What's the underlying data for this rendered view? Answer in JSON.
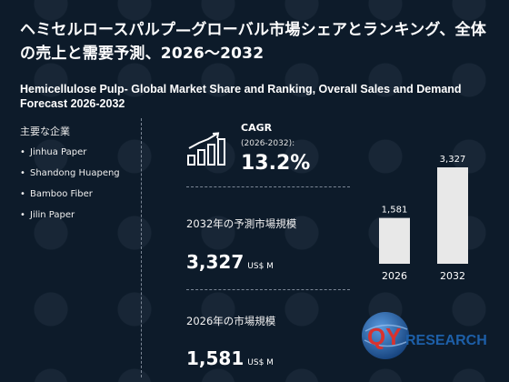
{
  "title_jp": "ヘミセルロースパルプ—グローバル市場シェアとランキング、全体の売上と需要予測、2026～2032",
  "title_en": "Hemicellulose Pulp- Global Market Share and Ranking, Overall Sales and Demand Forecast 2026-2032",
  "players": {
    "heading": "主要な企業",
    "bullet": "•",
    "items": [
      "Jinhua Paper",
      "Shandong Huapeng",
      "Bamboo Fiber",
      "Jilin Paper"
    ]
  },
  "cagr": {
    "label": "CAGR",
    "period": "(2026-2032):",
    "value": "13.2%",
    "icon": "bar-growth-icon"
  },
  "forecast": {
    "label": "2032年の予測市場規模",
    "value": "3,327",
    "unit": "US$ M"
  },
  "current": {
    "label": "2026年の市場規模",
    "value": "1,581",
    "unit": "US$ M"
  },
  "colors": {
    "background": "#0d1b2a",
    "bar": "#e8e8e8",
    "logo_red": "#d8322f",
    "logo_blue": "#1d5fa8"
  },
  "logo": {
    "text_qy": "QY",
    "text_rest": "RESEARCH"
  },
  "chart_data": {
    "type": "bar",
    "categories": [
      "2026",
      "2032"
    ],
    "values": [
      1581,
      3327
    ],
    "value_labels": [
      "1,581",
      "3,327"
    ],
    "title": "",
    "xlabel": "",
    "ylabel": "",
    "ylim": [
      0,
      3327
    ]
  }
}
